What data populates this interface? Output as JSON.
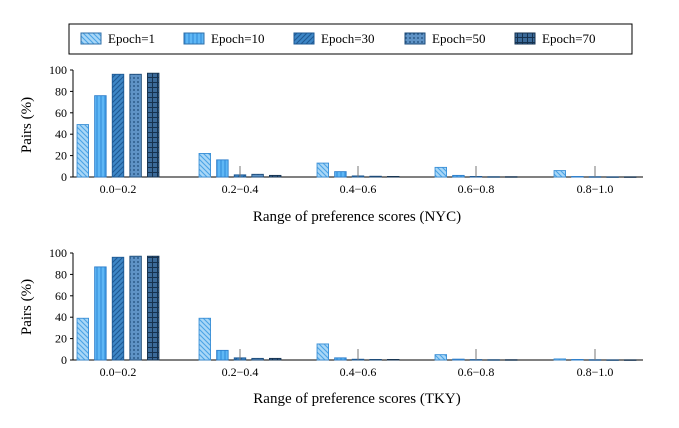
{
  "legend": {
    "entries": [
      {
        "label": "Epoch=1",
        "pattern": "hatch-back"
      },
      {
        "label": "Epoch=10",
        "pattern": "vertical"
      },
      {
        "label": "Epoch=30",
        "pattern": "hatch-forward"
      },
      {
        "label": "Epoch=50",
        "pattern": "dots"
      },
      {
        "label": "Epoch=70",
        "pattern": "grid"
      }
    ]
  },
  "colors": {
    "epoch1": "#a9d7f7",
    "epoch10": "#5fb7f5",
    "epoch30": "#3d86c6",
    "epoch50": "#4a7fb3",
    "epoch70": "#2c557f",
    "axis": "#000000",
    "whisker": "#666666"
  },
  "chart_data": [
    {
      "type": "bar",
      "ylabel": "Pairs (%)",
      "xlabel": "Range of preference scores (NYC)",
      "ylim": [
        0,
        100
      ],
      "yticks": [
        "0",
        "20",
        "40",
        "60",
        "80",
        "100"
      ],
      "categories": [
        "0.0−0.2",
        "0.2−0.4",
        "0.4−0.6",
        "0.6−0.8",
        "0.8−1.0"
      ],
      "series": [
        {
          "name": "Epoch=1",
          "values": [
            49,
            22,
            13,
            9,
            6
          ]
        },
        {
          "name": "Epoch=10",
          "values": [
            76,
            16,
            5,
            1.5,
            0.5
          ]
        },
        {
          "name": "Epoch=30",
          "values": [
            96,
            2,
            1,
            0.5,
            0.3
          ]
        },
        {
          "name": "Epoch=50",
          "values": [
            96,
            2.5,
            0.7,
            0.3,
            0.2
          ]
        },
        {
          "name": "Epoch=70",
          "values": [
            97,
            1.5,
            0.5,
            0.3,
            0.2
          ]
        }
      ],
      "grid": false,
      "legend_position": "top"
    },
    {
      "type": "bar",
      "ylabel": "Pairs (%)",
      "xlabel": "Range of preference scores (TKY)",
      "ylim": [
        0,
        100
      ],
      "yticks": [
        "0",
        "20",
        "40",
        "60",
        "80",
        "100"
      ],
      "categories": [
        "0.0−0.2",
        "0.2−0.4",
        "0.4−0.6",
        "0.6−0.8",
        "0.8−1.0"
      ],
      "series": [
        {
          "name": "Epoch=1",
          "values": [
            39,
            39,
            15,
            5,
            1
          ]
        },
        {
          "name": "Epoch=10",
          "values": [
            87,
            9,
            2,
            0.8,
            0.5
          ]
        },
        {
          "name": "Epoch=30",
          "values": [
            96,
            2,
            0.7,
            0.4,
            0.3
          ]
        },
        {
          "name": "Epoch=50",
          "values": [
            97,
            1.5,
            0.5,
            0.3,
            0.2
          ]
        },
        {
          "name": "Epoch=70",
          "values": [
            97,
            1.5,
            0.5,
            0.3,
            0.2
          ]
        }
      ],
      "grid": false,
      "legend_position": "top"
    }
  ]
}
